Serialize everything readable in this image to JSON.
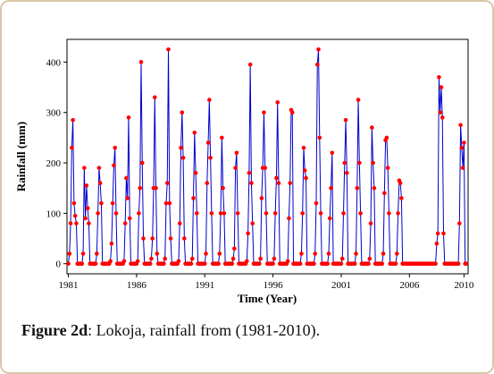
{
  "chart_data": {
    "type": "line",
    "ylabel": "Rainfall (mm)",
    "xlabel": "Time (Year)",
    "x_ticks": [
      "1981",
      "1986",
      "1991",
      "1996",
      "2001",
      "2006",
      "2010"
    ],
    "y_ticks": [
      "0",
      "100",
      "200",
      "300",
      "400"
    ],
    "xlim": [
      1980.9,
      2010.3
    ],
    "ylim": [
      -20,
      445
    ],
    "line_color": "#0000cc",
    "marker_color": "#ff0000",
    "series": [
      {
        "values": {
          "1981": [
            0,
            20,
            80,
            230,
            285,
            120,
            95,
            80,
            0,
            0,
            0,
            0
          ],
          "1982": [
            0,
            20,
            190,
            90,
            155,
            110,
            80,
            0,
            0,
            0,
            0,
            0
          ],
          "1983": [
            0,
            20,
            100,
            190,
            160,
            120,
            0,
            0,
            0,
            0,
            0,
            0
          ],
          "1984": [
            0,
            5,
            40,
            120,
            195,
            230,
            100,
            0,
            0,
            0,
            0,
            0
          ],
          "1985": [
            0,
            5,
            80,
            170,
            130,
            290,
            90,
            0,
            0,
            0,
            0,
            0
          ],
          "1986": [
            0,
            5,
            100,
            150,
            400,
            200,
            50,
            0,
            0,
            0,
            0,
            0
          ],
          "1987": [
            0,
            10,
            50,
            150,
            330,
            150,
            20,
            0,
            0,
            0,
            0,
            0
          ],
          "1988": [
            0,
            10,
            120,
            160,
            425,
            120,
            50,
            0,
            0,
            0,
            0,
            0
          ],
          "1989": [
            0,
            5,
            80,
            230,
            300,
            210,
            50,
            0,
            0,
            0,
            0,
            0
          ],
          "1990": [
            0,
            10,
            130,
            260,
            180,
            100,
            0,
            0,
            0,
            0,
            0,
            0
          ],
          "1991": [
            0,
            20,
            160,
            240,
            325,
            210,
            100,
            0,
            0,
            0,
            0,
            0
          ],
          "1992": [
            0,
            20,
            100,
            250,
            150,
            100,
            0,
            0,
            0,
            0,
            0,
            0
          ],
          "1993": [
            0,
            10,
            30,
            190,
            220,
            100,
            0,
            0,
            0,
            0,
            0,
            0
          ],
          "1994": [
            0,
            5,
            60,
            180,
            395,
            160,
            80,
            0,
            0,
            0,
            0,
            0
          ],
          "1995": [
            0,
            10,
            130,
            190,
            300,
            190,
            100,
            0,
            0,
            0,
            0,
            0
          ],
          "1996": [
            0,
            10,
            100,
            170,
            320,
            160,
            0,
            0,
            0,
            0,
            0,
            0
          ],
          "1997": [
            0,
            5,
            90,
            160,
            305,
            300,
            0,
            0,
            0,
            0,
            0,
            0
          ],
          "1998": [
            0,
            20,
            100,
            230,
            185,
            170,
            0,
            0,
            0,
            0,
            0,
            0
          ],
          "1999": [
            0,
            20,
            120,
            395,
            425,
            250,
            100,
            0,
            0,
            0,
            0,
            0
          ],
          "2000": [
            0,
            20,
            90,
            150,
            220,
            0,
            0,
            0,
            0,
            0,
            0,
            0
          ],
          "2001": [
            0,
            10,
            100,
            200,
            285,
            180,
            0,
            0,
            0,
            0,
            0,
            0
          ],
          "2002": [
            0,
            20,
            150,
            325,
            200,
            100,
            0,
            0,
            0,
            0,
            0,
            0
          ],
          "2003": [
            0,
            10,
            80,
            270,
            200,
            150,
            0,
            0,
            0,
            0,
            0,
            0
          ],
          "2004": [
            0,
            20,
            140,
            245,
            250,
            190,
            100,
            0,
            0,
            0,
            0,
            0
          ],
          "2005": [
            0,
            20,
            100,
            165,
            160,
            130,
            0,
            0,
            0,
            0,
            0,
            0
          ],
          "2006": [
            0,
            0,
            0,
            0,
            0,
            0,
            0,
            0,
            0,
            0,
            0,
            0
          ],
          "2007": [
            0,
            0,
            0,
            0,
            0,
            0,
            0,
            0,
            0,
            0,
            0,
            0
          ],
          "2008": [
            40,
            60,
            370,
            300,
            350,
            290,
            60,
            0,
            0,
            0,
            0,
            0
          ],
          "2009": [
            0,
            0,
            0,
            0,
            0,
            0,
            0,
            0,
            80,
            275,
            230,
            190
          ],
          "2010": [
            240,
            0,
            0
          ]
        }
      }
    ]
  },
  "caption": {
    "label": "Figure 2d",
    "text": ": Lokoja, rainfall from (1981-2010)."
  }
}
